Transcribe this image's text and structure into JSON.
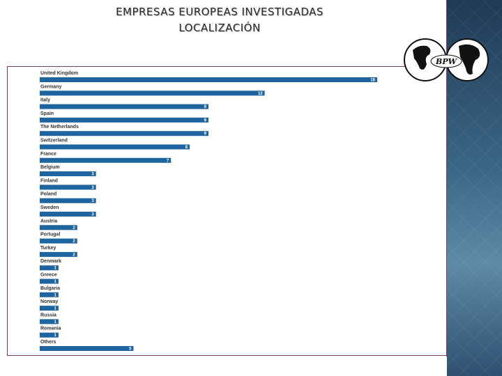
{
  "page": {
    "title_line1": "EMPRESAS EUROPEAS INVESTIGADAS",
    "title_line2": "LOCALIZACIÓN"
  },
  "logo": {
    "text": "BPW"
  },
  "colors": {
    "bar": "#1d64a0",
    "frame": "#7a3d68",
    "sidebar": "#3b6685"
  },
  "chart_data": {
    "type": "bar",
    "orientation": "horizontal",
    "title": "",
    "xlabel": "",
    "ylabel": "",
    "xlim": [
      0,
      18
    ],
    "grid": false,
    "categories": [
      "United Kingdom",
      "Germany",
      "Italy",
      "Spain",
      "The Netherlands",
      "Switzerland",
      "France",
      "Belgium",
      "Finland",
      "Poland",
      "Sweden",
      "Austria",
      "Portugal",
      "Turkey",
      "Denmark",
      "Greece",
      "Bulgaria",
      "Norway",
      "Russia",
      "Romania",
      "Others"
    ],
    "values": [
      18,
      12,
      9,
      9,
      9,
      8,
      7,
      3,
      3,
      3,
      3,
      2,
      2,
      2,
      1,
      1,
      1,
      1,
      1,
      1,
      5
    ]
  }
}
